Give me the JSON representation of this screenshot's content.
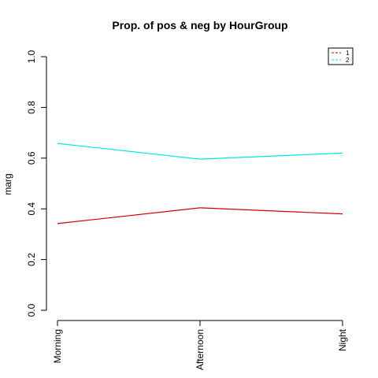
{
  "chart_data": {
    "type": "line",
    "title": "Prop. of pos & neg by HourGroup",
    "xlabel": "",
    "ylabel": "marg",
    "categories": [
      "Morning",
      "Afternoon",
      "Night"
    ],
    "ylim": [
      0,
      1
    ],
    "yticks": [
      "0.0",
      "0.2",
      "0.4",
      "0.6",
      "0.8",
      "1.0"
    ],
    "grid": false,
    "legend_position": "top-right",
    "series": [
      {
        "name": "1",
        "values": [
          0.342,
          0.404,
          0.38
        ],
        "color": "#cd0000",
        "dash": true
      },
      {
        "name": "2",
        "values": [
          0.658,
          0.596,
          0.62
        ],
        "color": "#00e5ee",
        "dash": true
      }
    ]
  }
}
